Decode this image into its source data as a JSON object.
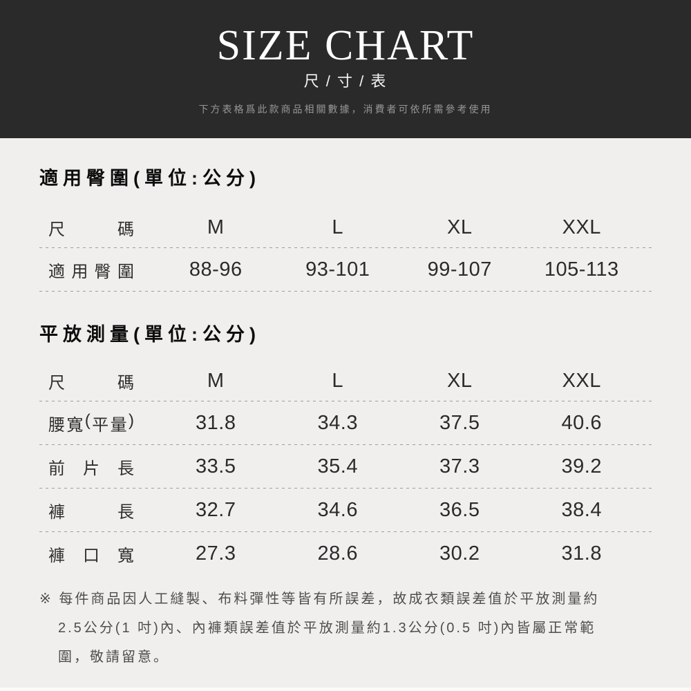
{
  "header": {
    "title": "SIZE CHART",
    "subtitle": "尺 / 寸 / 表",
    "description": "下方表格爲此款商品相關數據，消費者可依所需參考使用"
  },
  "hip_section": {
    "title": "適用臀圍(單位:公分)",
    "table": {
      "header_label": "尺碼",
      "columns": [
        "M",
        "L",
        "XL",
        "XXL"
      ],
      "rows": [
        {
          "label": "適用臀圍",
          "values": [
            "88-96",
            "93-101",
            "99-107",
            "105-113"
          ]
        }
      ]
    }
  },
  "flat_section": {
    "title": "平放測量(單位:公分)",
    "table": {
      "header_label": "尺碼",
      "columns": [
        "M",
        "L",
        "XL",
        "XXL"
      ],
      "rows": [
        {
          "label": "腰寬(平量)",
          "values": [
            "31.8",
            "34.3",
            "37.5",
            "40.6"
          ]
        },
        {
          "label": "前片長",
          "values": [
            "33.5",
            "35.4",
            "37.3",
            "39.2"
          ]
        },
        {
          "label": "褲長",
          "values": [
            "32.7",
            "34.6",
            "36.5",
            "38.4"
          ]
        },
        {
          "label": "褲口寬",
          "values": [
            "27.3",
            "28.6",
            "30.2",
            "31.8"
          ]
        }
      ]
    }
  },
  "note": {
    "lines": [
      "※ 每件商品因人工縫製、布料彈性等皆有所誤差，故成衣類誤差值於平放測量約",
      "2.5公分(1 吋)內、內褲類誤差值於平放測量約1.3公分(0.5 吋)內皆屬正常範",
      "圍，敬請留意。"
    ]
  },
  "colors": {
    "hero_background": "#2a2a2a",
    "body_background": "#f0efed",
    "hero_title": "#ffffff",
    "hero_description": "#979797",
    "table_text": "#2b2b2b",
    "dashed_line": "#9c9c9c",
    "note_text": "#4e4e4e"
  }
}
